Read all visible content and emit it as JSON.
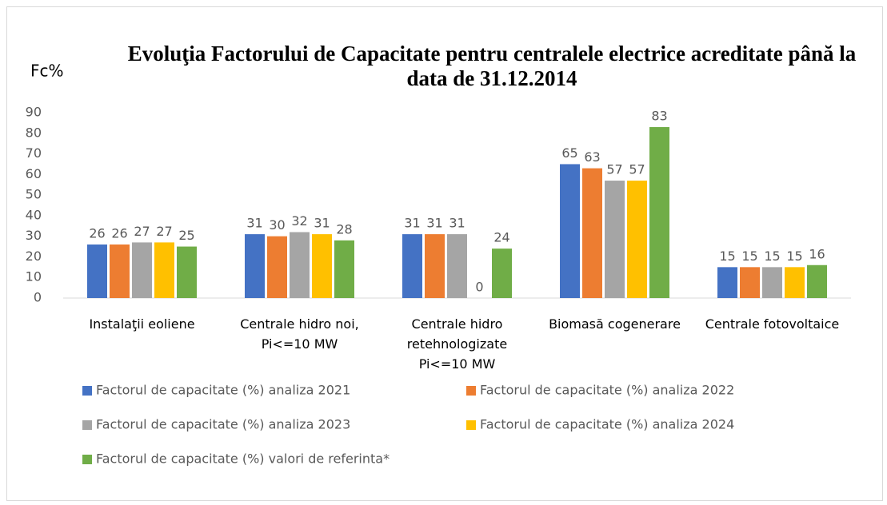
{
  "chart_data": {
    "type": "bar",
    "title": "Evoluţia Factorului de Capacitate pentru centralele electrice acreditate până la data de 31.12.2014",
    "y_label": "Fc%",
    "categories": [
      "Instalaţii eoliene",
      "Centrale hidro noi, Pi<=10 MW",
      "Centrale hidro retehnologizate Pi<=10 MW",
      "Biomasă cogenerare",
      "Centrale fotovoltaice"
    ],
    "series": [
      {
        "name": "Factorul de capacitate (%) analiza 2021",
        "color": "#4472c4",
        "values": [
          26,
          31,
          31,
          65,
          15
        ]
      },
      {
        "name": "Factorul de capacitate (%) analiza 2022",
        "color": "#ed7d31",
        "values": [
          26,
          30,
          31,
          63,
          15
        ]
      },
      {
        "name": "Factorul de capacitate (%) analiza 2023",
        "color": "#a5a5a5",
        "values": [
          27,
          32,
          31,
          57,
          15
        ]
      },
      {
        "name": "Factorul de capacitate (%) analiza 2024",
        "color": "#ffc000",
        "values": [
          27,
          31,
          0,
          57,
          15
        ]
      },
      {
        "name": "Factorul de capacitate (%) valori de referinta*",
        "color": "#70ad47",
        "values": [
          25,
          28,
          24,
          83,
          16
        ]
      }
    ],
    "ylim": [
      0,
      90
    ],
    "yticks": [
      0,
      10,
      20,
      30,
      40,
      50,
      60,
      70,
      80,
      90
    ],
    "grid": false,
    "legend": "bottom"
  }
}
